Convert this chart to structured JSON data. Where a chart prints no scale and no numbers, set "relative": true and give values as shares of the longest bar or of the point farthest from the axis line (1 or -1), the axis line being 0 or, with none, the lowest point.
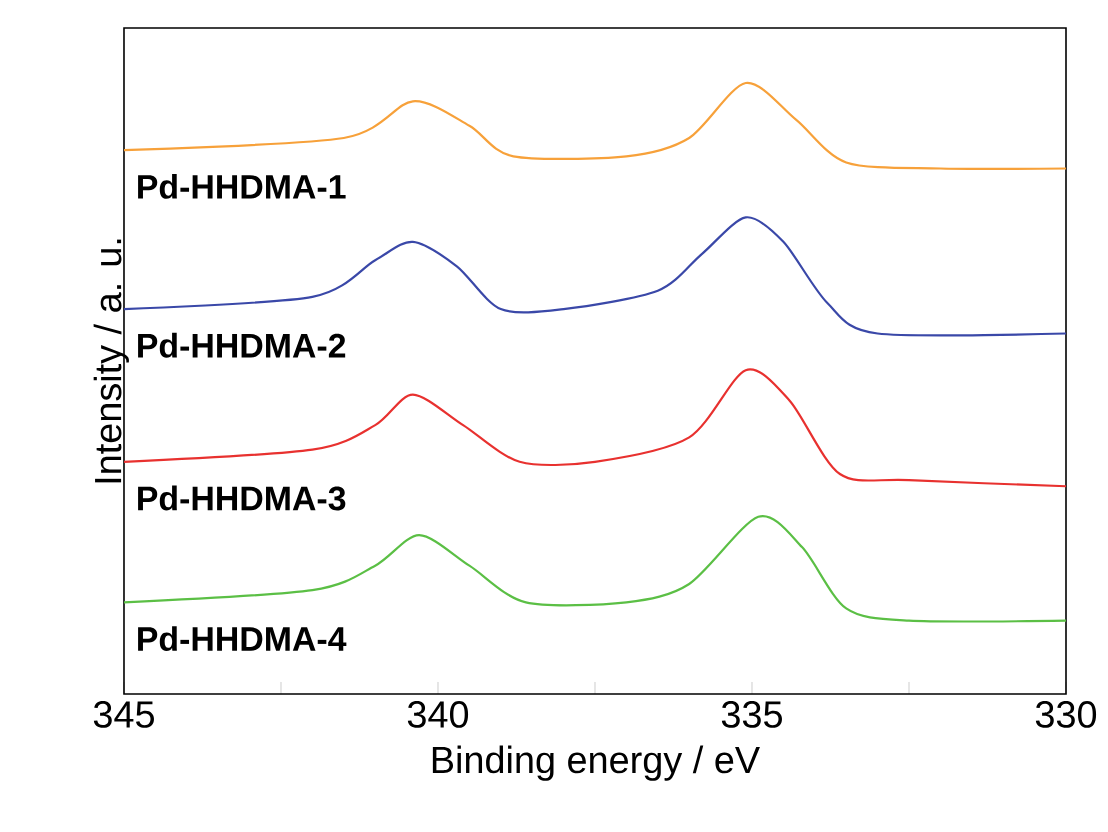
{
  "chart_data": {
    "type": "line",
    "xlabel": "Binding energy / eV",
    "ylabel": "Intensity / a. u.",
    "relative": true,
    "xlim": [
      345,
      330
    ],
    "xticks": [
      345,
      {
        "value": 342.5,
        "label": null
      },
      340,
      {
        "value": 337.5,
        "label": null
      },
      335,
      {
        "value": 332.5,
        "label": null
      },
      330
    ],
    "grid": false,
    "marker": "none",
    "line_style": "solid",
    "tick_labels": "x",
    "series": [
      {
        "name": "Pd-HHDMA-1",
        "color": "#f7a13a",
        "x": [
          345,
          341.5,
          340.4,
          339.5,
          338.8,
          337,
          336,
          335.1,
          334.3,
          333.5,
          332,
          330
        ],
        "values": [
          0.89,
          0.91,
          0.97,
          0.93,
          0.88,
          0.88,
          0.91,
          1.0,
          0.94,
          0.87,
          0.86,
          0.86
        ]
      },
      {
        "name": "Pd-HHDMA-2",
        "color": "#3a48a8",
        "x": [
          345,
          342,
          341,
          340.4,
          339.7,
          339,
          338,
          336.5,
          335.8,
          335.1,
          334.5,
          333.8,
          333,
          330
        ],
        "values": [
          0.63,
          0.65,
          0.71,
          0.74,
          0.7,
          0.63,
          0.63,
          0.66,
          0.72,
          0.78,
          0.74,
          0.64,
          0.59,
          0.59
        ]
      },
      {
        "name": "Pd-HHDMA-3",
        "color": "#e8312f",
        "x": [
          345,
          342,
          341,
          340.4,
          339.6,
          338.7,
          337.5,
          336,
          335.1,
          334.4,
          333.6,
          332.5,
          330
        ],
        "values": [
          0.38,
          0.4,
          0.44,
          0.49,
          0.44,
          0.38,
          0.38,
          0.42,
          0.53,
          0.48,
          0.36,
          0.35,
          0.34
        ]
      },
      {
        "name": "Pd-HHDMA-4",
        "color": "#5bbf45",
        "x": [
          345,
          342,
          341,
          340.3,
          339.5,
          338.6,
          337,
          336,
          334.9,
          334.2,
          333.5,
          332.5,
          330
        ],
        "values": [
          0.15,
          0.17,
          0.21,
          0.26,
          0.21,
          0.15,
          0.15,
          0.18,
          0.29,
          0.24,
          0.14,
          0.12,
          0.12
        ]
      }
    ]
  }
}
